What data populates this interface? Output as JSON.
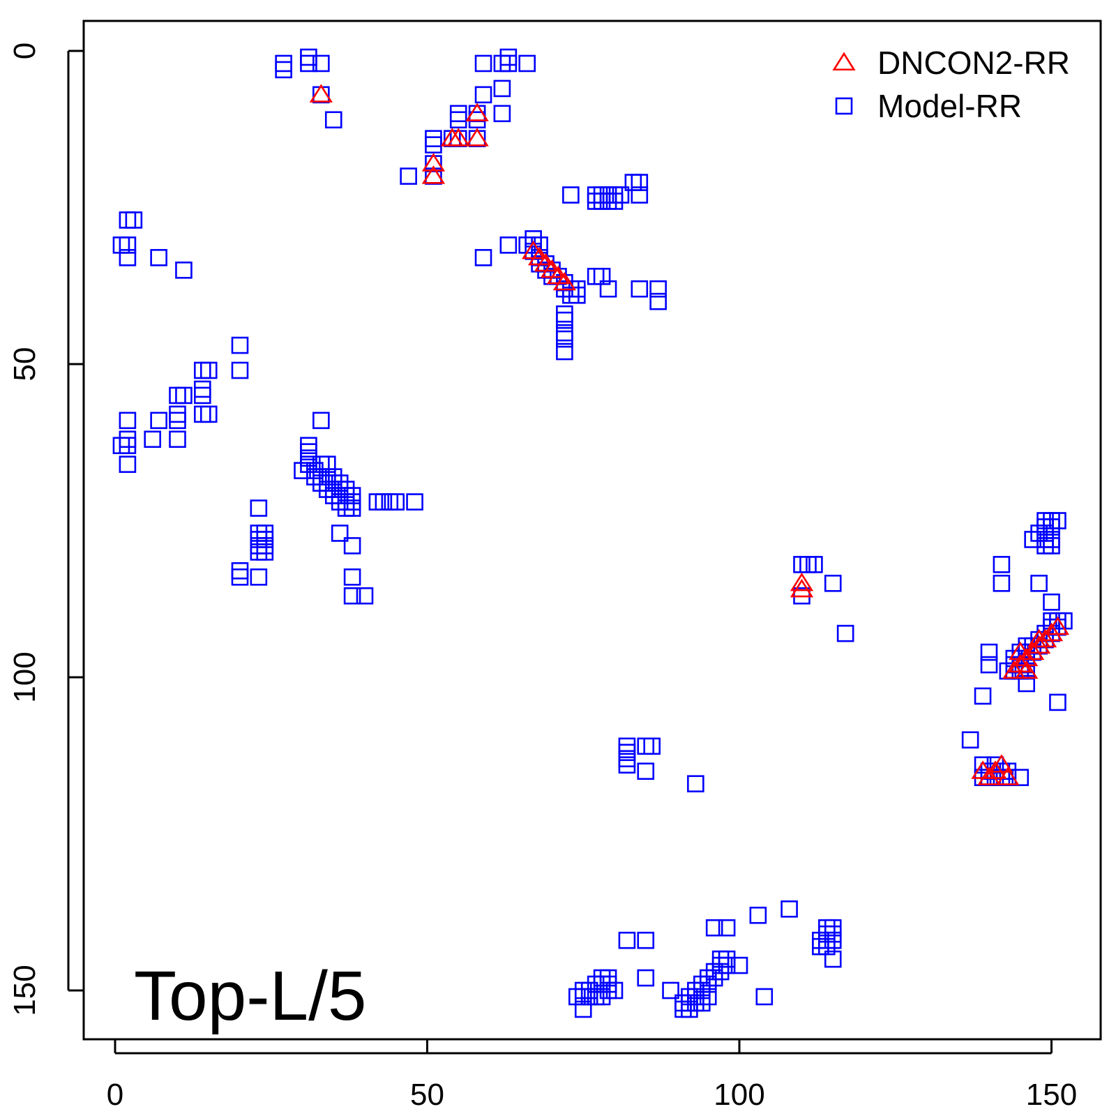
{
  "chart_data": {
    "type": "scatter",
    "title": "",
    "xlabel": "",
    "ylabel": "",
    "xlim": [
      -5,
      158
    ],
    "ylim": [
      -5,
      158
    ],
    "y_reversed": true,
    "x_ticks": [
      0,
      50,
      100,
      150
    ],
    "y_ticks": [
      0,
      50,
      100,
      150
    ],
    "annotation": "Top-L/5",
    "legend_position": "top-right",
    "legend": [
      {
        "label": "DNCON2-RR",
        "marker": "triangle",
        "color": "#ff0000"
      },
      {
        "label": "Model-RR",
        "marker": "square",
        "color": "#0000ff"
      }
    ],
    "series": [
      {
        "name": "DNCON2-RR",
        "marker": "triangle",
        "color": "#ff0000",
        "points": [
          [
            33,
            7
          ],
          [
            51,
            18
          ],
          [
            51,
            20
          ],
          [
            54,
            14
          ],
          [
            55,
            14
          ],
          [
            58,
            10
          ],
          [
            58,
            14
          ],
          [
            67,
            32
          ],
          [
            68,
            33
          ],
          [
            69,
            34
          ],
          [
            70,
            35
          ],
          [
            71,
            36
          ],
          [
            72,
            37
          ],
          [
            110,
            85
          ],
          [
            110,
            86
          ],
          [
            139,
            115
          ],
          [
            140,
            116
          ],
          [
            141,
            115
          ],
          [
            142,
            114
          ],
          [
            143,
            116
          ],
          [
            144,
            99
          ],
          [
            145,
            98
          ],
          [
            145,
            96
          ],
          [
            146,
            97
          ],
          [
            147,
            96
          ],
          [
            148,
            95
          ],
          [
            149,
            94
          ],
          [
            150,
            93
          ],
          [
            151,
            92
          ],
          [
            148,
            94
          ],
          [
            146,
            99
          ]
        ]
      },
      {
        "name": "Model-RR",
        "marker": "square",
        "color": "#0000ff",
        "points": [
          [
            27,
            2
          ],
          [
            27,
            3
          ],
          [
            31,
            1
          ],
          [
            31,
            2
          ],
          [
            33,
            2
          ],
          [
            33,
            7
          ],
          [
            35,
            11
          ],
          [
            59,
            2
          ],
          [
            62,
            2
          ],
          [
            63,
            1
          ],
          [
            63,
            2
          ],
          [
            66,
            2
          ],
          [
            62,
            6
          ],
          [
            59,
            7
          ],
          [
            62,
            10
          ],
          [
            55,
            10
          ],
          [
            55,
            11
          ],
          [
            58,
            10
          ],
          [
            58,
            11
          ],
          [
            51,
            14
          ],
          [
            51,
            15
          ],
          [
            54,
            14
          ],
          [
            55,
            14
          ],
          [
            58,
            14
          ],
          [
            51,
            18
          ],
          [
            51,
            20
          ],
          [
            47,
            20
          ],
          [
            73,
            23
          ],
          [
            77,
            23
          ],
          [
            78,
            23
          ],
          [
            79,
            23
          ],
          [
            80,
            23
          ],
          [
            77,
            24
          ],
          [
            78,
            24
          ],
          [
            79,
            24
          ],
          [
            80,
            24
          ],
          [
            81,
            23
          ],
          [
            83,
            21
          ],
          [
            84,
            21
          ],
          [
            84,
            23
          ],
          [
            2,
            27
          ],
          [
            3,
            27
          ],
          [
            1,
            31
          ],
          [
            2,
            31
          ],
          [
            2,
            33
          ],
          [
            7,
            33
          ],
          [
            11,
            35
          ],
          [
            59,
            33
          ],
          [
            63,
            31
          ],
          [
            66,
            31
          ],
          [
            67,
            30
          ],
          [
            68,
            31
          ],
          [
            67,
            32
          ],
          [
            68,
            33
          ],
          [
            69,
            34
          ],
          [
            70,
            35
          ],
          [
            71,
            36
          ],
          [
            72,
            37
          ],
          [
            68,
            34
          ],
          [
            69,
            35
          ],
          [
            70,
            36
          ],
          [
            72,
            38
          ],
          [
            73,
            38
          ],
          [
            74,
            38
          ],
          [
            73,
            39
          ],
          [
            74,
            39
          ],
          [
            77,
            36
          ],
          [
            78,
            36
          ],
          [
            79,
            38
          ],
          [
            84,
            38
          ],
          [
            87,
            38
          ],
          [
            87,
            40
          ],
          [
            72,
            42
          ],
          [
            72,
            43
          ],
          [
            72,
            45
          ],
          [
            72,
            46
          ],
          [
            72,
            48
          ],
          [
            20,
            47
          ],
          [
            20,
            51
          ],
          [
            14,
            51
          ],
          [
            15,
            51
          ],
          [
            14,
            54
          ],
          [
            14,
            55
          ],
          [
            10,
            55
          ],
          [
            11,
            55
          ],
          [
            10,
            58
          ],
          [
            14,
            58
          ],
          [
            15,
            58
          ],
          [
            2,
            59
          ],
          [
            7,
            59
          ],
          [
            10,
            59
          ],
          [
            10,
            62
          ],
          [
            6,
            62
          ],
          [
            2,
            62
          ],
          [
            1,
            63
          ],
          [
            2,
            63
          ],
          [
            2,
            66
          ],
          [
            33,
            59
          ],
          [
            31,
            63
          ],
          [
            31,
            64
          ],
          [
            31,
            65
          ],
          [
            31,
            66
          ],
          [
            30,
            67
          ],
          [
            32,
            67
          ],
          [
            33,
            66
          ],
          [
            34,
            66
          ],
          [
            32,
            68
          ],
          [
            33,
            68
          ],
          [
            34,
            68
          ],
          [
            35,
            68
          ],
          [
            33,
            69
          ],
          [
            34,
            69
          ],
          [
            35,
            69
          ],
          [
            36,
            69
          ],
          [
            34,
            70
          ],
          [
            35,
            70
          ],
          [
            36,
            70
          ],
          [
            37,
            70
          ],
          [
            35,
            71
          ],
          [
            36,
            71
          ],
          [
            37,
            71
          ],
          [
            38,
            71
          ],
          [
            36,
            72
          ],
          [
            37,
            72
          ],
          [
            38,
            72
          ],
          [
            37,
            73
          ],
          [
            38,
            73
          ],
          [
            42,
            72
          ],
          [
            43,
            72
          ],
          [
            44,
            72
          ],
          [
            45,
            72
          ],
          [
            48,
            72
          ],
          [
            23,
            73
          ],
          [
            23,
            77
          ],
          [
            24,
            77
          ],
          [
            23,
            78
          ],
          [
            24,
            78
          ],
          [
            23,
            79
          ],
          [
            24,
            79
          ],
          [
            23,
            80
          ],
          [
            24,
            80
          ],
          [
            20,
            83
          ],
          [
            20,
            84
          ],
          [
            23,
            84
          ],
          [
            36,
            77
          ],
          [
            38,
            79
          ],
          [
            38,
            84
          ],
          [
            38,
            87
          ],
          [
            40,
            87
          ],
          [
            110,
            82
          ],
          [
            111,
            82
          ],
          [
            112,
            82
          ],
          [
            110,
            87
          ],
          [
            115,
            85
          ],
          [
            117,
            93
          ],
          [
            149,
            75
          ],
          [
            150,
            75
          ],
          [
            149,
            76
          ],
          [
            150,
            76
          ],
          [
            151,
            75
          ],
          [
            148,
            77
          ],
          [
            149,
            77
          ],
          [
            147,
            78
          ],
          [
            149,
            78
          ],
          [
            150,
            78
          ],
          [
            149,
            79
          ],
          [
            150,
            79
          ],
          [
            142,
            82
          ],
          [
            142,
            85
          ],
          [
            148,
            85
          ],
          [
            150,
            88
          ],
          [
            150,
            91
          ],
          [
            151,
            91
          ],
          [
            152,
            91
          ],
          [
            150,
            92
          ],
          [
            151,
            92
          ],
          [
            149,
            93
          ],
          [
            150,
            93
          ],
          [
            148,
            94
          ],
          [
            149,
            94
          ],
          [
            146,
            95
          ],
          [
            147,
            95
          ],
          [
            148,
            95
          ],
          [
            145,
            96
          ],
          [
            146,
            96
          ],
          [
            147,
            96
          ],
          [
            144,
            97
          ],
          [
            145,
            97
          ],
          [
            146,
            97
          ],
          [
            144,
            98
          ],
          [
            145,
            98
          ],
          [
            146,
            98
          ],
          [
            143,
            99
          ],
          [
            144,
            99
          ],
          [
            145,
            99
          ],
          [
            146,
            99
          ],
          [
            146,
            101
          ],
          [
            140,
            96
          ],
          [
            140,
            98
          ],
          [
            151,
            104
          ],
          [
            139,
            103
          ],
          [
            137,
            110
          ],
          [
            82,
            111
          ],
          [
            82,
            112
          ],
          [
            82,
            113
          ],
          [
            82,
            114
          ],
          [
            85,
            111
          ],
          [
            86,
            111
          ],
          [
            85,
            115
          ],
          [
            139,
            116
          ],
          [
            140,
            116
          ],
          [
            141,
            116
          ],
          [
            142,
            116
          ],
          [
            143,
            116
          ],
          [
            145,
            116
          ],
          [
            141,
            114
          ],
          [
            140,
            115
          ],
          [
            142,
            115
          ],
          [
            143,
            115
          ],
          [
            139,
            114
          ],
          [
            93,
            117
          ],
          [
            103,
            138
          ],
          [
            108,
            137
          ],
          [
            96,
            140
          ],
          [
            98,
            140
          ],
          [
            82,
            142
          ],
          [
            85,
            142
          ],
          [
            114,
            140
          ],
          [
            115,
            140
          ],
          [
            114,
            141
          ],
          [
            115,
            141
          ],
          [
            113,
            142
          ],
          [
            114,
            142
          ],
          [
            115,
            142
          ],
          [
            113,
            143
          ],
          [
            114,
            143
          ],
          [
            115,
            142
          ],
          [
            115,
            145
          ],
          [
            100,
            146
          ],
          [
            98,
            145
          ],
          [
            97,
            145
          ],
          [
            98,
            146
          ],
          [
            97,
            146
          ],
          [
            96,
            147
          ],
          [
            97,
            147
          ],
          [
            95,
            148
          ],
          [
            96,
            148
          ],
          [
            95,
            149
          ],
          [
            94,
            149
          ],
          [
            94,
            150
          ],
          [
            93,
            150
          ],
          [
            93,
            151
          ],
          [
            92,
            151
          ],
          [
            92,
            152
          ],
          [
            93,
            152
          ],
          [
            91,
            152
          ],
          [
            91,
            153
          ],
          [
            92,
            153
          ],
          [
            94,
            152
          ],
          [
            95,
            151
          ],
          [
            85,
            148
          ],
          [
            89,
            150
          ],
          [
            104,
            151
          ],
          [
            75,
            150
          ],
          [
            76,
            150
          ],
          [
            77,
            149
          ],
          [
            78,
            149
          ],
          [
            79,
            149
          ],
          [
            80,
            150
          ],
          [
            75,
            151
          ],
          [
            76,
            151
          ],
          [
            77,
            151
          ],
          [
            78,
            151
          ],
          [
            79,
            150
          ],
          [
            74,
            151
          ],
          [
            75,
            153
          ],
          [
            78,
            148
          ],
          [
            79,
            148
          ]
        ]
      }
    ]
  }
}
